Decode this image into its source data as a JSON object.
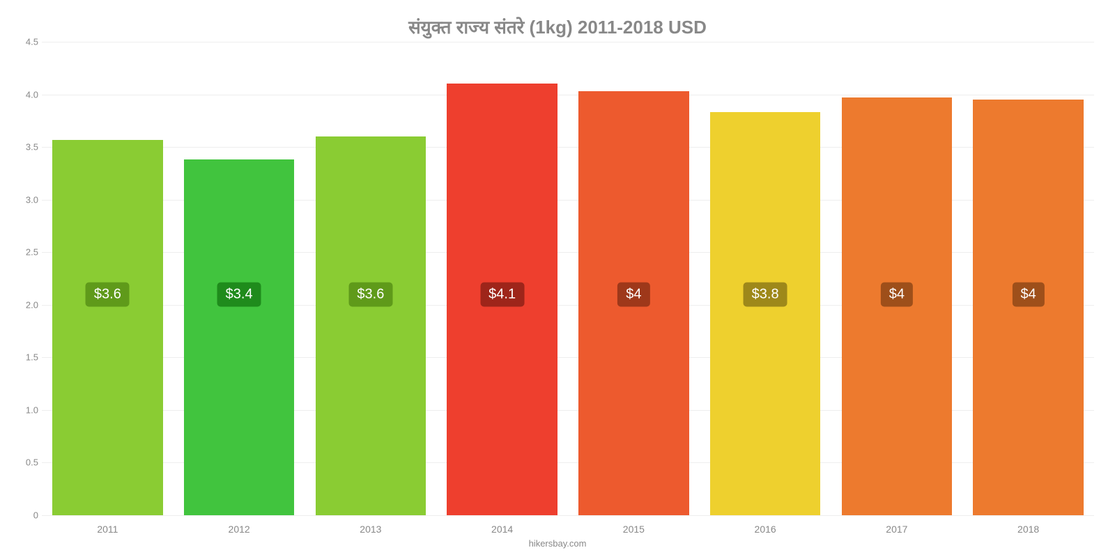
{
  "chart": {
    "type": "bar",
    "title": "संयुक्त राज्य संतरे (1kg) 2011-2018 USD",
    "title_fontsize": 26,
    "title_color": "#888888",
    "attribution": "hikersbay.com",
    "background_color": "#ffffff",
    "grid_color": "#eeeeee",
    "tick_color": "#888888",
    "ytick_fontsize": 13,
    "xtick_fontsize": 14,
    "value_label_fontsize": 20,
    "ylim": [
      0,
      4.5
    ],
    "yticks": [
      0,
      0.5,
      1.0,
      1.5,
      2.0,
      2.5,
      3.0,
      3.5,
      4.0,
      4.5
    ],
    "ytick_labels": [
      "0",
      "0.5",
      "1.0",
      "1.5",
      "2.0",
      "2.5",
      "3.0",
      "3.5",
      "4.0",
      "4.5"
    ],
    "bar_width_pct": 84,
    "label_y_value": 2.1,
    "categories": [
      "2011",
      "2012",
      "2013",
      "2014",
      "2015",
      "2016",
      "2017",
      "2018"
    ],
    "values": [
      3.57,
      3.38,
      3.6,
      4.1,
      4.03,
      3.83,
      3.97,
      3.95
    ],
    "value_labels": [
      "$3.6",
      "$3.4",
      "$3.6",
      "$4.1",
      "$4",
      "$3.8",
      "$4",
      "$4"
    ],
    "bar_colors": [
      "#8acc33",
      "#41c43e",
      "#8acc33",
      "#ee3f2e",
      "#ed5a2e",
      "#eed02e",
      "#ed7a2e",
      "#ed7a2e"
    ],
    "label_bg_colors": [
      "#5f9a1a",
      "#1f8b1c",
      "#5f9a1a",
      "#9e251a",
      "#9e381a",
      "#9e881a",
      "#9e4f1a",
      "#9e4f1a"
    ]
  }
}
